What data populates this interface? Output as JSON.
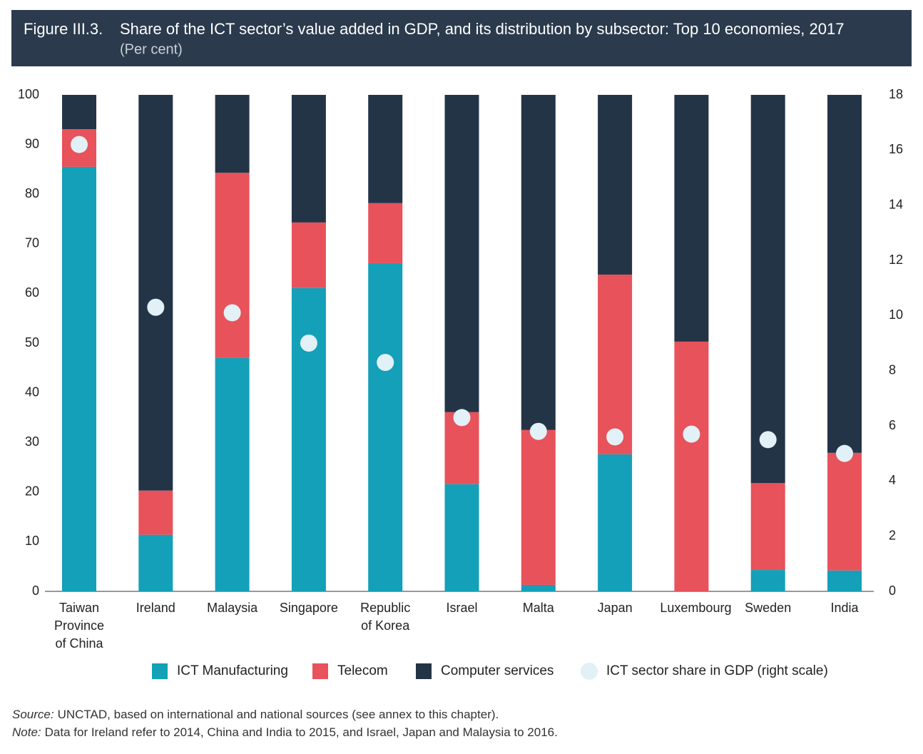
{
  "chart_data": {
    "type": "bar",
    "stacked": true,
    "figure_label": "Figure III.3.",
    "title": "Share of the ICT sector’s value added in GDP, and its distribution by subsector: Top 10 economies, 2017",
    "subtitle": "(Per cent)",
    "categories": [
      "Taiwan Province of China",
      "Ireland",
      "Malaysia",
      "Singapore",
      "Republic of Korea",
      "Israel",
      "Malta",
      "Japan",
      "Luxembourg",
      "Sweden",
      "India"
    ],
    "series": [
      {
        "name": "ICT Manufacturing",
        "type": "bar",
        "color": "#14a0b8",
        "values": [
          85.5,
          11.4,
          47.0,
          61.1,
          66.1,
          21.6,
          1.3,
          27.6,
          0,
          4.3,
          4.2
        ]
      },
      {
        "name": "Telecom",
        "type": "bar",
        "color": "#e8525a",
        "values": [
          7.6,
          8.9,
          37.3,
          13.2,
          12.1,
          14.5,
          31.2,
          36.2,
          50.3,
          17.5,
          23.7
        ]
      },
      {
        "name": "Computer services",
        "type": "bar",
        "color": "#243447",
        "values": [
          6.9,
          79.7,
          15.7,
          25.7,
          21.8,
          63.9,
          67.5,
          36.2,
          49.7,
          78.2,
          72.1
        ]
      },
      {
        "name": "ICT sector share in GDP (right scale)",
        "type": "scatter",
        "axis": "y2",
        "color": "#e2f1f7",
        "values": [
          16.2,
          10.3,
          10.1,
          9.0,
          8.3,
          6.3,
          5.8,
          5.6,
          5.7,
          5.5,
          5.0
        ]
      }
    ],
    "ylim": [
      0,
      100
    ],
    "yticks": [
      0,
      10,
      20,
      30,
      40,
      50,
      60,
      70,
      80,
      90,
      100
    ],
    "y2lim": [
      0,
      18
    ],
    "y2ticks": [
      0,
      2,
      4,
      6,
      8,
      10,
      12,
      14,
      16,
      18
    ],
    "grid": false,
    "source_label": "Source:",
    "source": "UNCTAD, based on international and national sources (see annex to this chapter).",
    "note_label": "Note:",
    "note": "Data for Ireland refer to 2014, China and India to 2015, and Israel, Japan and Malaysia to 2016."
  }
}
